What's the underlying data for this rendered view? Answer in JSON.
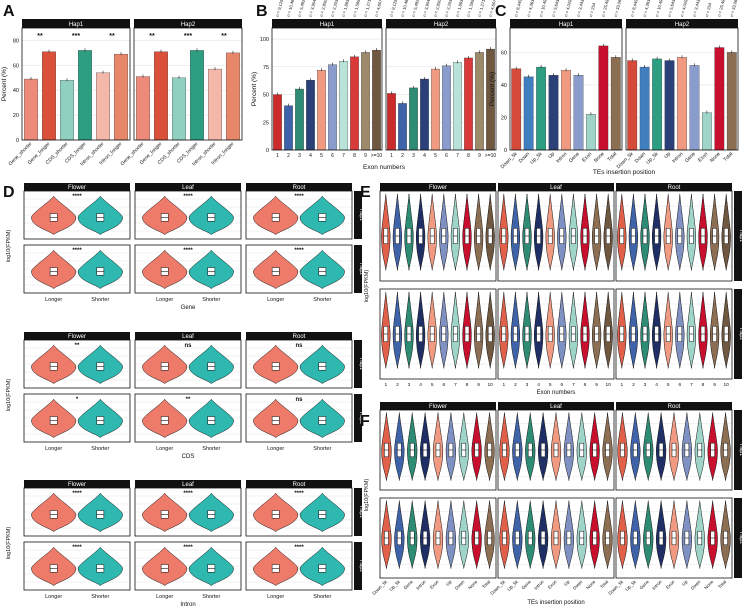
{
  "panels": {
    "A": {
      "letter": "A",
      "ylabel": "Percent (%)",
      "facets": [
        "Hap1",
        "Hap2"
      ],
      "yticks": [
        "0",
        "20",
        "40",
        "60",
        "80"
      ],
      "categories": [
        "Gene_shorter",
        "Gene_longer",
        "CDS_shorter",
        "CDS_longer",
        "Intron_shorter",
        "Intron_longer"
      ],
      "colors": [
        "#EE8A7A",
        "#D9513A",
        "#8FD0C0",
        "#2E9E82",
        "#F4B8AA",
        "#E8866A"
      ],
      "sig": [
        "**",
        "***",
        "**"
      ]
    },
    "B": {
      "letter": "B",
      "ylabel": "Percent (%)",
      "xlabel": "Exon numbers",
      "facets": [
        "Hap1",
        "Hap2"
      ],
      "yticks": [
        "0",
        "25",
        "50",
        "75",
        "100"
      ],
      "categories": [
        "1",
        "2",
        "3",
        "4",
        "5",
        "6",
        "7",
        "8",
        "9",
        ">=10"
      ],
      "colors": [
        "#CC2B2B",
        "#3F63A8",
        "#2E8B74",
        "#2B3F78",
        "#F19A82",
        "#8A9CCB",
        "#B9E3D9",
        "#D83A3A",
        "#9C8A6A",
        "#6F5740"
      ],
      "n_labels": [
        "n = 9,129",
        "n = 10,468",
        "n = 5,482",
        "n = 3,904",
        "n = 2,850",
        "n = 2,203",
        "n = 1,893",
        "n = 1,595",
        "n = 1,271",
        "n = 4,607"
      ]
    },
    "C": {
      "letter": "C",
      "ylabel": "Percent (%)",
      "xlabel": "TEs insertion position",
      "facets": [
        "Hap1",
        "Hap2"
      ],
      "yticks": [
        "0",
        "20",
        "40",
        "60"
      ],
      "categories": [
        "Down_5k",
        "Down",
        "Up_5k",
        "Up",
        "Intron",
        "Gene",
        "Exon",
        "None",
        "Total"
      ],
      "colors": [
        "#D64A3A",
        "#3F7FC0",
        "#2E9E82",
        "#2B3F78",
        "#F19A82",
        "#8A9CCB",
        "#9FD4C8",
        "#C8102E",
        "#8C6E52"
      ],
      "n_labels": [
        "n = 8,445",
        "n = 4,363",
        "n = 10,498",
        "n = 5,643",
        "n = 4,029",
        "n = 3,443",
        "n = 254",
        "n = 25,496",
        "n = 33,069"
      ]
    },
    "D": {
      "letter": "D",
      "ylabel": "log10(FPKM)",
      "groups": [
        "Gene",
        "CDS",
        "Intron"
      ],
      "facets": [
        "Flower",
        "Leaf",
        "Root"
      ],
      "rows": [
        "Hap1",
        "Hap2"
      ],
      "categories": [
        "Longer",
        "Shorter"
      ],
      "colors": [
        "#EE7A6A",
        "#2EB8B0"
      ],
      "sig": [
        [
          [
            "****",
            "****",
            "****"
          ],
          [
            "****",
            "****",
            "****"
          ]
        ],
        [
          [
            "**",
            "ns",
            "ns"
          ],
          [
            "*",
            "**",
            "ns"
          ]
        ],
        [
          [
            "****",
            "****",
            "****"
          ],
          [
            "****",
            "****",
            "****"
          ]
        ]
      ]
    },
    "E": {
      "letter": "E",
      "ylabel": "log10(FPKM)",
      "xlabel": "Exon numbers",
      "facets": [
        "Flower",
        "Leaf",
        "Root"
      ],
      "rows": [
        "Hap1",
        "Hap2"
      ],
      "categories": [
        "1",
        "2",
        "3",
        "4",
        "5",
        "6",
        "7",
        "8",
        "9",
        "10"
      ]
    },
    "F": {
      "letter": "F",
      "ylabel": "log10(FPKM)",
      "xlabel": "TEs insertion position",
      "facets": [
        "Flower",
        "Leaf",
        "Root"
      ],
      "rows": [
        "Hap1",
        "Hap2"
      ],
      "categories": [
        "Down_5k",
        "Up_5k",
        "Gene",
        "Intron",
        "Exon",
        "Up",
        "Down",
        "None",
        "Total"
      ]
    }
  },
  "chart_data": [
    {
      "type": "bar",
      "panel": "A",
      "ylabel": "Percent (%)",
      "ylim": [
        0,
        90
      ],
      "categories": [
        "Gene_shorter",
        "Gene_longer",
        "CDS_shorter",
        "CDS_longer",
        "Intron_shorter",
        "Intron_longer"
      ],
      "series": [
        {
          "name": "Hap1",
          "values": [
            49,
            71,
            48,
            72,
            54,
            69
          ]
        },
        {
          "name": "Hap2",
          "values": [
            51,
            71,
            50,
            72,
            57,
            70
          ]
        }
      ]
    },
    {
      "type": "bar",
      "panel": "B",
      "ylabel": "Percent (%)",
      "xlabel": "Exon numbers",
      "ylim": [
        0,
        110
      ],
      "categories": [
        "1",
        "2",
        "3",
        "4",
        "5",
        "6",
        "7",
        "8",
        "9",
        ">=10"
      ],
      "series": [
        {
          "name": "Hap1",
          "values": [
            50,
            40,
            55,
            63,
            72,
            77,
            80,
            84,
            88,
            90
          ]
        },
        {
          "name": "Hap2",
          "values": [
            51,
            42,
            56,
            64,
            73,
            76,
            79,
            83,
            88,
            91
          ]
        }
      ]
    },
    {
      "type": "bar",
      "panel": "C",
      "ylabel": "Percent (%)",
      "xlabel": "TEs insertion position",
      "ylim": [
        0,
        75
      ],
      "categories": [
        "Down_5k",
        "Down",
        "Up_5k",
        "Up",
        "Intron",
        "Gene",
        "Exon",
        "None",
        "Total"
      ],
      "series": [
        {
          "name": "Hap1",
          "values": [
            50,
            45,
            51,
            46,
            49,
            46,
            22,
            64,
            57
          ]
        },
        {
          "name": "Hap2",
          "values": [
            55,
            51,
            56,
            55,
            57,
            52,
            23,
            63,
            60
          ]
        }
      ]
    }
  ]
}
